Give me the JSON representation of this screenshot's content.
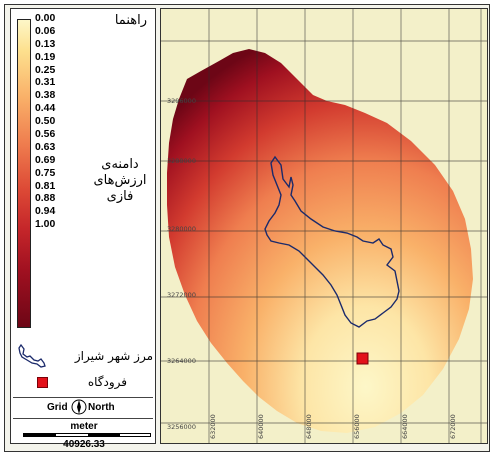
{
  "legend": {
    "title": "راهنما",
    "ramp_labels": [
      "0.00",
      "0.06",
      "0.13",
      "0.19",
      "0.25",
      "0.31",
      "0.38",
      "0.44",
      "0.50",
      "0.56",
      "0.63",
      "0.69",
      "0.75",
      "0.81",
      "0.88",
      "0.94",
      "1.00"
    ],
    "range_title_lines": [
      "دامنه‌ی",
      "ارزش‌های",
      "فازی"
    ],
    "boundary_label": "مرز شهر شیراز",
    "airport_label": "فرودگاه",
    "north_grid": "Grid",
    "north_text": "North",
    "scale_unit": "meter",
    "scale_value": "40926.33"
  },
  "map": {
    "y_labels": [
      "3296000",
      "3288000",
      "3280000",
      "3272000",
      "3264000",
      "3256000"
    ],
    "x_labels": [
      "632000",
      "640000",
      "648000",
      "656000",
      "664000",
      "672000"
    ]
  },
  "colors": {
    "low": "#fdf7c8",
    "mid": "#ef7e4f",
    "high": "#6d0616",
    "airport": "#e3111a",
    "boundary": "#1b2a6b"
  }
}
